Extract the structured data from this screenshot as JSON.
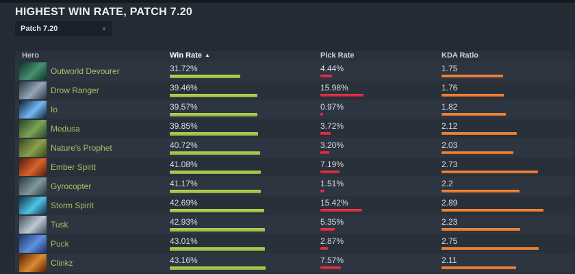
{
  "page": {
    "title": "HIGHEST WIN RATE, PATCH 7.20",
    "patch_dropdown": {
      "value": "Patch 7.20",
      "caret_icon": "▼"
    }
  },
  "table": {
    "columns": {
      "hero": "Hero",
      "win_rate": "Win Rate",
      "pick_rate": "Pick Rate",
      "kda": "KDA Ratio"
    },
    "sorted_column": "Win Rate",
    "sort_arrow": "▲"
  },
  "colors": {
    "win_rate_bar": "#9ec447",
    "pick_rate_bar": "#dd2a40",
    "kda_bar": "#e87d31",
    "hero_link": "#a9c061",
    "row_odd": "#2d3540",
    "row_even": "#28303a"
  },
  "chart_data": {
    "type": "table",
    "title": "HIGHEST WIN RATE, PATCH 7.20",
    "columns": [
      "Hero",
      "Win Rate",
      "Pick Rate",
      "KDA Ratio"
    ],
    "series": [
      {
        "name": "Win Rate %",
        "values": [
          31.72,
          39.46,
          39.57,
          39.85,
          40.72,
          41.08,
          41.17,
          42.69,
          42.93,
          43.01,
          43.16
        ]
      },
      {
        "name": "Pick Rate %",
        "values": [
          4.44,
          15.98,
          0.97,
          3.72,
          3.2,
          7.19,
          1.51,
          15.42,
          5.35,
          2.87,
          7.57
        ]
      },
      {
        "name": "KDA Ratio",
        "values": [
          1.75,
          1.76,
          1.82,
          2.12,
          2.03,
          2.73,
          2.2,
          2.89,
          2.23,
          2.75,
          2.11
        ]
      }
    ],
    "categories": [
      "Outworld Devourer",
      "Drow Ranger",
      "Io",
      "Medusa",
      "Nature's Prophet",
      "Ember Spirit",
      "Gyrocopter",
      "Storm Spirit",
      "Tusk",
      "Puck",
      "Clinkz"
    ]
  },
  "rows": [
    {
      "hero": "Outworld Devourer",
      "win_rate": "31.72%",
      "win_rate_value": 31.72,
      "pick_rate": "4.44%",
      "pick_rate_value": 4.44,
      "kda": "1.75",
      "kda_value": 1.75,
      "portrait_colors": [
        "#10302a",
        "#45906e"
      ]
    },
    {
      "hero": "Drow Ranger",
      "win_rate": "39.46%",
      "win_rate_value": 39.46,
      "pick_rate": "15.98%",
      "pick_rate_value": 15.98,
      "kda": "1.76",
      "kda_value": 1.76,
      "portrait_colors": [
        "#2a343f",
        "#93a7b8"
      ]
    },
    {
      "hero": "Io",
      "win_rate": "39.57%",
      "win_rate_value": 39.57,
      "pick_rate": "0.97%",
      "pick_rate_value": 0.97,
      "kda": "1.82",
      "kda_value": 1.82,
      "portrait_colors": [
        "#0c1e38",
        "#74b9f2"
      ]
    },
    {
      "hero": "Medusa",
      "win_rate": "39.85%",
      "win_rate_value": 39.85,
      "pick_rate": "3.72%",
      "pick_rate_value": 3.72,
      "kda": "2.12",
      "kda_value": 2.12,
      "portrait_colors": [
        "#28422a",
        "#7aa355"
      ]
    },
    {
      "hero": "Nature's Prophet",
      "win_rate": "40.72%",
      "win_rate_value": 40.72,
      "pick_rate": "3.20%",
      "pick_rate_value": 3.2,
      "kda": "2.03",
      "kda_value": 2.03,
      "portrait_colors": [
        "#3a461e",
        "#8aa04b"
      ]
    },
    {
      "hero": "Ember Spirit",
      "win_rate": "41.08%",
      "win_rate_value": 41.08,
      "pick_rate": "7.19%",
      "pick_rate_value": 7.19,
      "kda": "2.73",
      "kda_value": 2.73,
      "portrait_colors": [
        "#531b0e",
        "#d8622a"
      ]
    },
    {
      "hero": "Gyrocopter",
      "win_rate": "41.17%",
      "win_rate_value": 41.17,
      "pick_rate": "1.51%",
      "pick_rate_value": 1.51,
      "kda": "2.2",
      "kda_value": 2.2,
      "portrait_colors": [
        "#29383d",
        "#80989f"
      ]
    },
    {
      "hero": "Storm Spirit",
      "win_rate": "42.69%",
      "win_rate_value": 42.69,
      "pick_rate": "15.42%",
      "pick_rate_value": 15.42,
      "kda": "2.89",
      "kda_value": 2.89,
      "portrait_colors": [
        "#123048",
        "#52c2e4"
      ]
    },
    {
      "hero": "Tusk",
      "win_rate": "42.93%",
      "win_rate_value": 42.93,
      "pick_rate": "5.35%",
      "pick_rate_value": 5.35,
      "kda": "2.23",
      "kda_value": 2.23,
      "portrait_colors": [
        "#404d59",
        "#bdc9d3"
      ]
    },
    {
      "hero": "Puck",
      "win_rate": "43.01%",
      "win_rate_value": 43.01,
      "pick_rate": "2.87%",
      "pick_rate_value": 2.87,
      "kda": "2.75",
      "kda_value": 2.75,
      "portrait_colors": [
        "#1e3262",
        "#5d92e2"
      ]
    },
    {
      "hero": "Clinkz",
      "win_rate": "43.16%",
      "win_rate_value": 43.16,
      "pick_rate": "7.57%",
      "pick_rate_value": 7.57,
      "kda": "2.11",
      "kda_value": 2.11,
      "portrait_colors": [
        "#4f2009",
        "#dd8a2e"
      ]
    }
  ]
}
